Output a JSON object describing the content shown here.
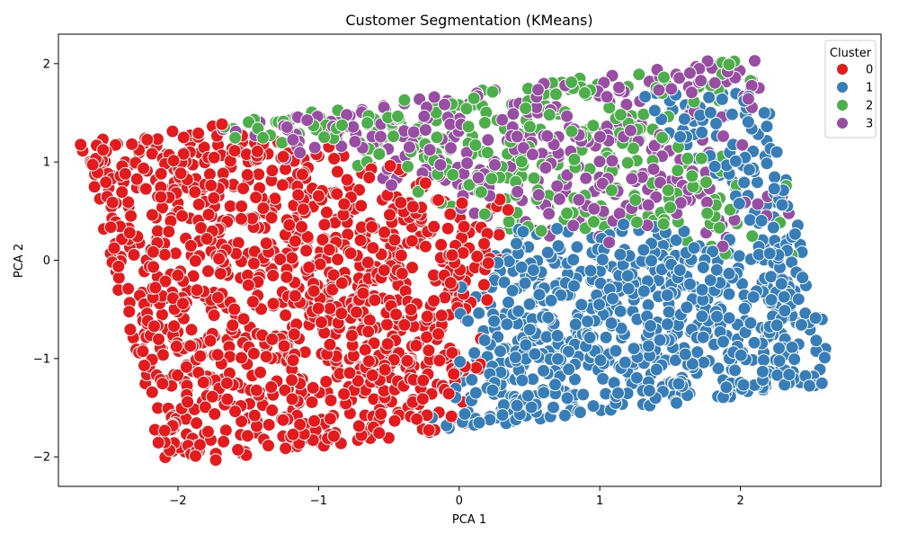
{
  "chart_data": {
    "type": "scatter",
    "title": "Customer Segmentation (KMeans)",
    "xlabel": "PCA 1",
    "ylabel": "PCA 2",
    "xlim": [
      -2.85,
      3.0
    ],
    "ylim": [
      -2.3,
      2.3
    ],
    "xticks": [
      -2,
      -1,
      0,
      1,
      2
    ],
    "yticks": [
      -2,
      -1,
      0,
      1,
      2
    ],
    "xtick_labels": [
      "−2",
      "−1",
      "0",
      "1",
      "2"
    ],
    "ytick_labels": [
      "−2",
      "−1",
      "0",
      "1",
      "2"
    ],
    "grid": false,
    "legend": {
      "title": "Cluster",
      "position": "top-right",
      "entries": [
        "0",
        "1",
        "2",
        "3"
      ]
    },
    "colors": {
      "0": "#e41a1c",
      "1": "#377eb8",
      "2": "#4daf4a",
      "3": "#984ea3"
    },
    "point_count_approx": 10000,
    "region_corners": [
      [
        -2.7,
        1.2
      ],
      [
        -2.1,
        -2.1
      ],
      [
        2.7,
        -1.25
      ],
      [
        2.1,
        2.1
      ]
    ],
    "series": [
      {
        "name": "0",
        "description_region": "left / lower-left",
        "centroid": [
          -1.2,
          -0.8
        ],
        "count_approx": 2600
      },
      {
        "name": "1",
        "description_region": "right / lower-right",
        "centroid": [
          1.5,
          -0.5
        ],
        "count_approx": 2700
      },
      {
        "name": "2",
        "description_region": "upper band, mixed",
        "centroid": [
          0.1,
          0.8
        ],
        "count_approx": 2300
      },
      {
        "name": "3",
        "description_region": "upper band, mixed",
        "centroid": [
          -0.2,
          1.0
        ],
        "count_approx": 2400
      }
    ]
  }
}
